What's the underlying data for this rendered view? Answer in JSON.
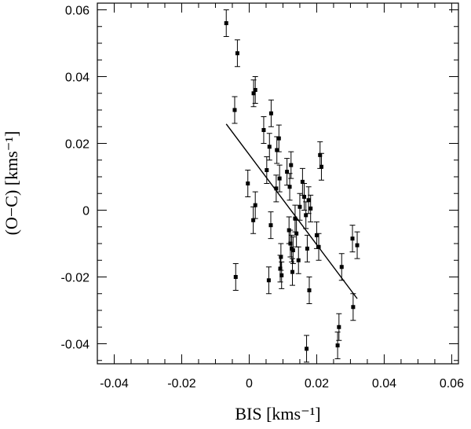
{
  "chart_data": {
    "type": "scatter",
    "title": "",
    "xlabel": "BIS  [kms⁻¹]",
    "ylabel": "(O−C)  [kms⁻¹]",
    "xlim": [
      -0.045,
      0.062
    ],
    "ylim": [
      -0.046,
      0.062
    ],
    "x_ticks": [
      -0.04,
      -0.02,
      0,
      0.02,
      0.04,
      0.06
    ],
    "x_tick_labels": [
      "-0.04",
      "-0.02",
      "0",
      "0.02",
      "0.04",
      "0.06"
    ],
    "y_ticks": [
      -0.04,
      -0.02,
      0,
      0.02,
      0.04,
      0.06
    ],
    "y_tick_labels": [
      "-0.04",
      "-0.02",
      "0",
      "0.02",
      "0.04",
      "0.06"
    ],
    "grid": false,
    "legend": "none",
    "error_bar": 0.004,
    "points": [
      {
        "x": -0.0068,
        "y": 0.056
      },
      {
        "x": -0.0035,
        "y": 0.047
      },
      {
        "x": -0.0043,
        "y": 0.03
      },
      {
        "x": -0.004,
        "y": -0.02
      },
      {
        "x": -0.0004,
        "y": 0.008
      },
      {
        "x": 0.0013,
        "y": 0.035
      },
      {
        "x": 0.0018,
        "y": 0.036
      },
      {
        "x": 0.0012,
        "y": -0.003
      },
      {
        "x": 0.0018,
        "y": 0.0015
      },
      {
        "x": 0.0043,
        "y": 0.024
      },
      {
        "x": 0.0052,
        "y": 0.012
      },
      {
        "x": 0.006,
        "y": 0.019
      },
      {
        "x": 0.0065,
        "y": 0.029
      },
      {
        "x": 0.0064,
        "y": -0.0045
      },
      {
        "x": 0.0058,
        "y": -0.021
      },
      {
        "x": 0.008,
        "y": 0.0065
      },
      {
        "x": 0.0082,
        "y": 0.018
      },
      {
        "x": 0.0088,
        "y": 0.0215
      },
      {
        "x": 0.009,
        "y": 0.0095
      },
      {
        "x": 0.0092,
        "y": -0.0175
      },
      {
        "x": 0.0094,
        "y": -0.014
      },
      {
        "x": 0.0096,
        "y": -0.0195
      },
      {
        "x": 0.0112,
        "y": 0.0115
      },
      {
        "x": 0.012,
        "y": 0.007
      },
      {
        "x": 0.0124,
        "y": 0.0135
      },
      {
        "x": 0.0118,
        "y": -0.006
      },
      {
        "x": 0.0122,
        "y": -0.01
      },
      {
        "x": 0.0126,
        "y": -0.0115
      },
      {
        "x": 0.013,
        "y": -0.012
      },
      {
        "x": 0.0128,
        "y": -0.0185
      },
      {
        "x": 0.0136,
        "y": -0.0025
      },
      {
        "x": 0.014,
        "y": -0.007
      },
      {
        "x": 0.0146,
        "y": -0.015
      },
      {
        "x": 0.015,
        "y": 0.001
      },
      {
        "x": 0.0158,
        "y": 0.0085
      },
      {
        "x": 0.0163,
        "y": 0.004
      },
      {
        "x": 0.0168,
        "y": -0.0015
      },
      {
        "x": 0.0172,
        "y": -0.0115
      },
      {
        "x": 0.0176,
        "y": 0.003
      },
      {
        "x": 0.0182,
        "y": 0.0005
      },
      {
        "x": 0.0178,
        "y": -0.024
      },
      {
        "x": 0.017,
        "y": -0.0415
      },
      {
        "x": 0.02,
        "y": -0.0075
      },
      {
        "x": 0.0206,
        "y": -0.011
      },
      {
        "x": 0.021,
        "y": 0.0165
      },
      {
        "x": 0.0214,
        "y": 0.013
      },
      {
        "x": 0.0262,
        "y": -0.0405
      },
      {
        "x": 0.0266,
        "y": -0.035
      },
      {
        "x": 0.0274,
        "y": -0.017
      },
      {
        "x": 0.0306,
        "y": -0.0085
      },
      {
        "x": 0.032,
        "y": -0.0105
      },
      {
        "x": 0.0308,
        "y": -0.029
      }
    ],
    "fit_line": {
      "x": [
        -0.0068,
        0.032
      ],
      "y": [
        0.0258,
        -0.0265
      ]
    }
  }
}
